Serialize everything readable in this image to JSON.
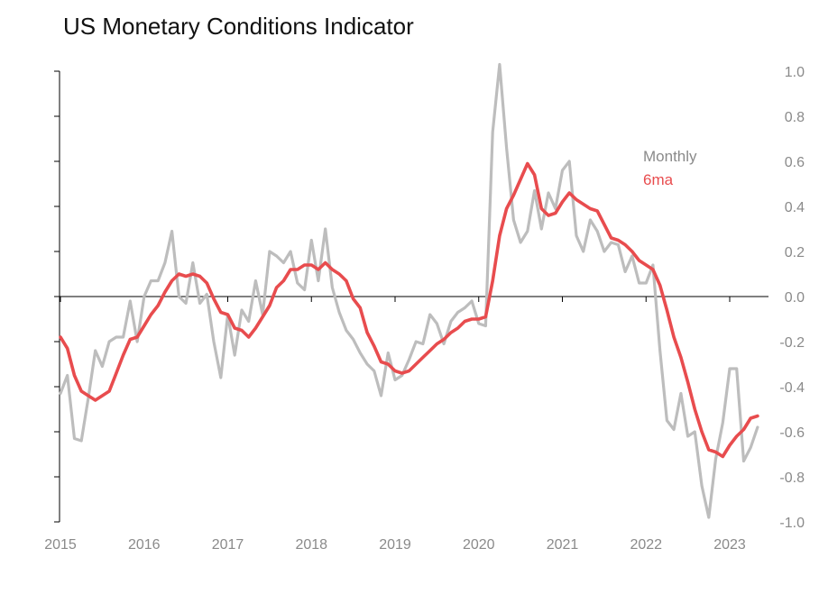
{
  "chart_data": {
    "type": "line",
    "title": "US Monetary Conditions Indicator",
    "xlabel": "",
    "ylabel": "",
    "xlim": [
      2015.0,
      2023.7
    ],
    "ylim": [
      -1.0,
      1.0
    ],
    "x_ticks": [
      {
        "value": 2015,
        "label": "2015"
      },
      {
        "value": 2016,
        "label": "2016"
      },
      {
        "value": 2017,
        "label": "2017"
      },
      {
        "value": 2018,
        "label": "2018"
      },
      {
        "value": 2019,
        "label": "2019"
      },
      {
        "value": 2020,
        "label": "2020"
      },
      {
        "value": 2021,
        "label": "2021"
      },
      {
        "value": 2022,
        "label": "2022"
      },
      {
        "value": 2023,
        "label": "2023"
      }
    ],
    "y_ticks": [
      {
        "value": 1.0,
        "label": "1.0"
      },
      {
        "value": 0.8,
        "label": "0.8"
      },
      {
        "value": 0.6,
        "label": "0.6"
      },
      {
        "value": 0.4,
        "label": "0.4"
      },
      {
        "value": 0.2,
        "label": "0.2"
      },
      {
        "value": 0.0,
        "label": "0.0"
      },
      {
        "value": -0.2,
        "label": "-0.2"
      },
      {
        "value": -0.4,
        "label": "-0.4"
      },
      {
        "value": -0.6,
        "label": "-0.6"
      },
      {
        "value": -0.8,
        "label": "-0.8"
      },
      {
        "value": -1.0,
        "label": "-1.0"
      }
    ],
    "zero_line": true,
    "legend": {
      "position": "top-right",
      "entries": [
        "Monthly",
        "6ma"
      ]
    },
    "series": [
      {
        "name": "Monthly",
        "color": "#bdbdbd",
        "points": [
          [
            2015.0,
            -0.43
          ],
          [
            2015.083,
            -0.35
          ],
          [
            2015.167,
            -0.63
          ],
          [
            2015.25,
            -0.64
          ],
          [
            2015.333,
            -0.45
          ],
          [
            2015.417,
            -0.24
          ],
          [
            2015.5,
            -0.31
          ],
          [
            2015.583,
            -0.2
          ],
          [
            2015.667,
            -0.18
          ],
          [
            2015.75,
            -0.18
          ],
          [
            2015.833,
            -0.02
          ],
          [
            2015.917,
            -0.2
          ],
          [
            2016.0,
            0.0
          ],
          [
            2016.083,
            0.07
          ],
          [
            2016.167,
            0.07
          ],
          [
            2016.25,
            0.15
          ],
          [
            2016.333,
            0.29
          ],
          [
            2016.417,
            0.0
          ],
          [
            2016.5,
            -0.03
          ],
          [
            2016.583,
            0.15
          ],
          [
            2016.667,
            -0.03
          ],
          [
            2016.75,
            0.01
          ],
          [
            2016.833,
            -0.2
          ],
          [
            2016.917,
            -0.36
          ],
          [
            2017.0,
            -0.08
          ],
          [
            2017.083,
            -0.26
          ],
          [
            2017.167,
            -0.06
          ],
          [
            2017.25,
            -0.11
          ],
          [
            2017.333,
            0.07
          ],
          [
            2017.417,
            -0.08
          ],
          [
            2017.5,
            0.2
          ],
          [
            2017.583,
            0.18
          ],
          [
            2017.667,
            0.15
          ],
          [
            2017.75,
            0.2
          ],
          [
            2017.833,
            0.06
          ],
          [
            2017.917,
            0.03
          ],
          [
            2018.0,
            0.25
          ],
          [
            2018.083,
            0.07
          ],
          [
            2018.167,
            0.3
          ],
          [
            2018.25,
            0.04
          ],
          [
            2018.333,
            -0.07
          ],
          [
            2018.417,
            -0.15
          ],
          [
            2018.5,
            -0.19
          ],
          [
            2018.583,
            -0.25
          ],
          [
            2018.667,
            -0.3
          ],
          [
            2018.75,
            -0.33
          ],
          [
            2018.833,
            -0.44
          ],
          [
            2018.917,
            -0.25
          ],
          [
            2019.0,
            -0.37
          ],
          [
            2019.083,
            -0.35
          ],
          [
            2019.167,
            -0.28
          ],
          [
            2019.25,
            -0.2
          ],
          [
            2019.333,
            -0.21
          ],
          [
            2019.417,
            -0.08
          ],
          [
            2019.5,
            -0.12
          ],
          [
            2019.583,
            -0.21
          ],
          [
            2019.667,
            -0.11
          ],
          [
            2019.75,
            -0.07
          ],
          [
            2019.833,
            -0.05
          ],
          [
            2019.917,
            -0.02
          ],
          [
            2020.0,
            -0.12
          ],
          [
            2020.083,
            -0.13
          ],
          [
            2020.167,
            0.73
          ],
          [
            2020.25,
            1.03
          ],
          [
            2020.333,
            0.66
          ],
          [
            2020.417,
            0.34
          ],
          [
            2020.5,
            0.24
          ],
          [
            2020.583,
            0.29
          ],
          [
            2020.667,
            0.47
          ],
          [
            2020.75,
            0.3
          ],
          [
            2020.833,
            0.46
          ],
          [
            2020.917,
            0.39
          ],
          [
            2021.0,
            0.56
          ],
          [
            2021.083,
            0.6
          ],
          [
            2021.167,
            0.27
          ],
          [
            2021.25,
            0.2
          ],
          [
            2021.333,
            0.34
          ],
          [
            2021.417,
            0.29
          ],
          [
            2021.5,
            0.2
          ],
          [
            2021.583,
            0.24
          ],
          [
            2021.667,
            0.23
          ],
          [
            2021.75,
            0.11
          ],
          [
            2021.833,
            0.18
          ],
          [
            2021.917,
            0.06
          ],
          [
            2022.0,
            0.06
          ],
          [
            2022.083,
            0.14
          ],
          [
            2022.167,
            -0.24
          ],
          [
            2022.25,
            -0.55
          ],
          [
            2022.333,
            -0.59
          ],
          [
            2022.417,
            -0.43
          ],
          [
            2022.5,
            -0.62
          ],
          [
            2022.583,
            -0.6
          ],
          [
            2022.667,
            -0.84
          ],
          [
            2022.75,
            -0.98
          ],
          [
            2022.833,
            -0.72
          ],
          [
            2022.917,
            -0.56
          ],
          [
            2023.0,
            -0.32
          ],
          [
            2023.083,
            -0.32
          ],
          [
            2023.167,
            -0.73
          ],
          [
            2023.25,
            -0.67
          ],
          [
            2023.333,
            -0.58
          ]
        ]
      },
      {
        "name": "6ma",
        "color": "#e84c4e",
        "points": [
          [
            2015.0,
            -0.18
          ],
          [
            2015.083,
            -0.23
          ],
          [
            2015.167,
            -0.35
          ],
          [
            2015.25,
            -0.42
          ],
          [
            2015.333,
            -0.44
          ],
          [
            2015.417,
            -0.46
          ],
          [
            2015.5,
            -0.44
          ],
          [
            2015.583,
            -0.42
          ],
          [
            2015.667,
            -0.34
          ],
          [
            2015.75,
            -0.26
          ],
          [
            2015.833,
            -0.19
          ],
          [
            2015.917,
            -0.18
          ],
          [
            2016.0,
            -0.13
          ],
          [
            2016.083,
            -0.08
          ],
          [
            2016.167,
            -0.04
          ],
          [
            2016.25,
            0.02
          ],
          [
            2016.333,
            0.07
          ],
          [
            2016.417,
            0.1
          ],
          [
            2016.5,
            0.09
          ],
          [
            2016.583,
            0.1
          ],
          [
            2016.667,
            0.09
          ],
          [
            2016.75,
            0.06
          ],
          [
            2016.833,
            -0.01
          ],
          [
            2016.917,
            -0.07
          ],
          [
            2017.0,
            -0.08
          ],
          [
            2017.083,
            -0.14
          ],
          [
            2017.167,
            -0.15
          ],
          [
            2017.25,
            -0.18
          ],
          [
            2017.333,
            -0.14
          ],
          [
            2017.417,
            -0.09
          ],
          [
            2017.5,
            -0.04
          ],
          [
            2017.583,
            0.04
          ],
          [
            2017.667,
            0.07
          ],
          [
            2017.75,
            0.12
          ],
          [
            2017.833,
            0.12
          ],
          [
            2017.917,
            0.14
          ],
          [
            2018.0,
            0.14
          ],
          [
            2018.083,
            0.12
          ],
          [
            2018.167,
            0.15
          ],
          [
            2018.25,
            0.12
          ],
          [
            2018.333,
            0.1
          ],
          [
            2018.417,
            0.07
          ],
          [
            2018.5,
            -0.01
          ],
          [
            2018.583,
            -0.05
          ],
          [
            2018.667,
            -0.16
          ],
          [
            2018.75,
            -0.22
          ],
          [
            2018.833,
            -0.29
          ],
          [
            2018.917,
            -0.3
          ],
          [
            2019.0,
            -0.33
          ],
          [
            2019.083,
            -0.34
          ],
          [
            2019.167,
            -0.33
          ],
          [
            2019.25,
            -0.3
          ],
          [
            2019.333,
            -0.27
          ],
          [
            2019.417,
            -0.24
          ],
          [
            2019.5,
            -0.21
          ],
          [
            2019.583,
            -0.19
          ],
          [
            2019.667,
            -0.16
          ],
          [
            2019.75,
            -0.14
          ],
          [
            2019.833,
            -0.11
          ],
          [
            2019.917,
            -0.1
          ],
          [
            2020.0,
            -0.1
          ],
          [
            2020.083,
            -0.09
          ],
          [
            2020.167,
            0.07
          ],
          [
            2020.25,
            0.27
          ],
          [
            2020.333,
            0.39
          ],
          [
            2020.417,
            0.45
          ],
          [
            2020.5,
            0.52
          ],
          [
            2020.583,
            0.59
          ],
          [
            2020.667,
            0.54
          ],
          [
            2020.75,
            0.39
          ],
          [
            2020.833,
            0.36
          ],
          [
            2020.917,
            0.37
          ],
          [
            2021.0,
            0.42
          ],
          [
            2021.083,
            0.46
          ],
          [
            2021.167,
            0.43
          ],
          [
            2021.25,
            0.41
          ],
          [
            2021.333,
            0.39
          ],
          [
            2021.417,
            0.38
          ],
          [
            2021.5,
            0.32
          ],
          [
            2021.583,
            0.26
          ],
          [
            2021.667,
            0.25
          ],
          [
            2021.75,
            0.23
          ],
          [
            2021.833,
            0.2
          ],
          [
            2021.917,
            0.16
          ],
          [
            2022.0,
            0.14
          ],
          [
            2022.083,
            0.12
          ],
          [
            2022.167,
            0.05
          ],
          [
            2022.25,
            -0.06
          ],
          [
            2022.333,
            -0.18
          ],
          [
            2022.417,
            -0.27
          ],
          [
            2022.5,
            -0.38
          ],
          [
            2022.583,
            -0.5
          ],
          [
            2022.667,
            -0.6
          ],
          [
            2022.75,
            -0.68
          ],
          [
            2022.833,
            -0.69
          ],
          [
            2022.917,
            -0.71
          ],
          [
            2023.0,
            -0.66
          ],
          [
            2023.083,
            -0.62
          ],
          [
            2023.167,
            -0.59
          ],
          [
            2023.25,
            -0.54
          ],
          [
            2023.333,
            -0.53
          ]
        ]
      }
    ]
  }
}
